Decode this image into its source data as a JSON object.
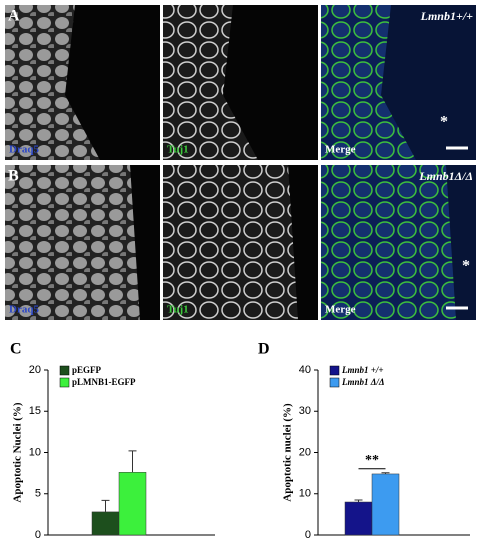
{
  "figure": {
    "rows": [
      {
        "panel": "A",
        "genotype": "Lmnb1+/+",
        "stains": [
          "Draq5",
          "Tuj1",
          "Merge"
        ],
        "mark": "*"
      },
      {
        "panel": "B",
        "genotype": "Lmnb1Δ/Δ",
        "stains": [
          "Draq5",
          "Tuj1",
          "Merge"
        ],
        "mark": "*"
      }
    ]
  },
  "chart_data": [
    {
      "type": "bar",
      "panel": "C",
      "y_label": "Apoptotic Nuclei (%)",
      "categories": [
        null
      ],
      "series": [
        {
          "name": "pEGFP",
          "color": "#1d4f1d",
          "values": [
            2.8
          ],
          "errors": [
            1.4
          ]
        },
        {
          "name": "pLMNB1-EGFP",
          "color": "#3cf03c",
          "values": [
            7.6
          ],
          "errors": [
            2.6
          ]
        }
      ],
      "ylim": [
        0,
        20
      ],
      "yticks": [
        0,
        5,
        10,
        15,
        20
      ],
      "legend": "top-left"
    },
    {
      "type": "bar",
      "panel": "D",
      "y_label": "Apoptotic nuclei (%)",
      "categories": [
        null
      ],
      "series": [
        {
          "name": "Lmnb1 +/+",
          "color": "#14148a",
          "values": [
            8
          ],
          "errors": [
            0.5
          ]
        },
        {
          "name": "Lmnb1 Δ/Δ",
          "color": "#3d9bf0",
          "values": [
            14.8
          ],
          "errors": [
            0.3
          ]
        }
      ],
      "ylim": [
        0,
        40
      ],
      "yticks": [
        0,
        10,
        20,
        30,
        40
      ],
      "legend": "top-left",
      "annotation": "**"
    }
  ]
}
